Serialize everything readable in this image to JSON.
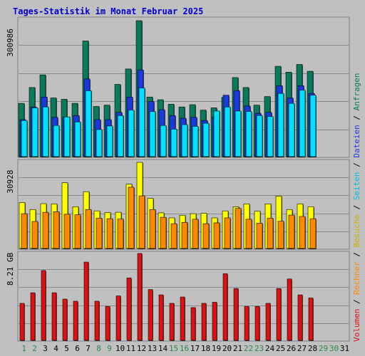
{
  "title": "Tages-Statistik im Monat Februar 2025",
  "colors": {
    "background": "#c0c0c0",
    "title": "#0000cc",
    "anfragen": "#0a7a5a",
    "dateien": "#1a3ae0",
    "seiten": "#00e0ff",
    "besuche": "#ffff00",
    "rechner": "#ff8800",
    "volumen": "#e01010",
    "weekday": "#000000",
    "weekend": "#2a8a4a"
  },
  "chart_data": [
    {
      "type": "bar",
      "panel": "top",
      "scale_label": "300986",
      "ylim": [
        0,
        300986
      ],
      "categories": [
        "1",
        "2",
        "3",
        "4",
        "5",
        "6",
        "7",
        "8",
        "9",
        "10",
        "11",
        "12",
        "13",
        "14",
        "15",
        "16",
        "17",
        "18",
        "19",
        "20",
        "21",
        "22",
        "23",
        "24",
        "25",
        "26",
        "27",
        "28",
        "29",
        "30",
        "31"
      ],
      "weekend_days": [
        "1",
        "2",
        "8",
        "9",
        "15",
        "16",
        "22",
        "23",
        "29",
        "30"
      ],
      "series": [
        {
          "name": "Anfragen",
          "values": [
            118000,
            153000,
            181000,
            130000,
            127000,
            118000,
            256000,
            111000,
            114000,
            160000,
            194000,
            300986,
            132000,
            126000,
            116000,
            110000,
            115000,
            103000,
            108000,
            131000,
            175000,
            153000,
            114000,
            133000,
            200000,
            187000,
            204000,
            189000,
            0,
            0,
            0
          ]
        },
        {
          "name": "Dateien",
          "values": [
            82000,
            110000,
            132000,
            87000,
            87000,
            91000,
            172000,
            82000,
            82000,
            98000,
            132000,
            192000,
            122000,
            104000,
            91000,
            85000,
            87000,
            80000,
            88000,
            136000,
            146000,
            112000,
            96000,
            98000,
            157000,
            130000,
            157000,
            140000,
            0,
            0,
            0
          ]
        },
        {
          "name": "Seiten",
          "values": [
            80000,
            108000,
            110000,
            69000,
            88000,
            77000,
            146000,
            60000,
            68000,
            91000,
            103000,
            152000,
            100000,
            69000,
            61000,
            71000,
            67000,
            74000,
            101000,
            110000,
            101000,
            100000,
            91000,
            89000,
            140000,
            118000,
            147000,
            136000,
            0,
            0,
            0
          ]
        }
      ]
    },
    {
      "type": "bar",
      "panel": "middle",
      "scale_label": "30928",
      "ylim": [
        0,
        30928
      ],
      "categories": [
        "1",
        "2",
        "3",
        "4",
        "5",
        "6",
        "7",
        "8",
        "9",
        "10",
        "11",
        "12",
        "13",
        "14",
        "15",
        "16",
        "17",
        "18",
        "19",
        "20",
        "21",
        "22",
        "23",
        "24",
        "25",
        "26",
        "27",
        "28",
        "29",
        "30",
        "31"
      ],
      "series": [
        {
          "name": "Besuche",
          "values": [
            16500,
            14000,
            16100,
            16000,
            23600,
            15000,
            20400,
            13500,
            12900,
            13000,
            23100,
            30928,
            18000,
            12800,
            11000,
            11900,
            12500,
            12600,
            11000,
            13500,
            15000,
            16000,
            13400,
            16000,
            18800,
            14000,
            16000,
            15000,
            0,
            0,
            0
          ]
        },
        {
          "name": "Rechner",
          "values": [
            12500,
            9700,
            13000,
            13200,
            12300,
            12100,
            14000,
            10900,
            10700,
            10600,
            22000,
            18900,
            14000,
            11200,
            8900,
            9400,
            10500,
            8900,
            9200,
            11000,
            14400,
            10500,
            9100,
            10900,
            9800,
            12000,
            11500,
            10700,
            0,
            0,
            0
          ]
        }
      ]
    },
    {
      "type": "bar",
      "panel": "bottom",
      "scale_label": "8.21 GB",
      "ylim": [
        0,
        8.21
      ],
      "categories": [
        "1",
        "2",
        "3",
        "4",
        "5",
        "6",
        "7",
        "8",
        "9",
        "10",
        "11",
        "12",
        "13",
        "14",
        "15",
        "16",
        "17",
        "18",
        "19",
        "20",
        "21",
        "22",
        "23",
        "24",
        "25",
        "26",
        "27",
        "28",
        "29",
        "30",
        "31"
      ],
      "series": [
        {
          "name": "Volumen",
          "values": [
            3.5,
            4.5,
            6.6,
            4.5,
            3.9,
            3.7,
            7.4,
            3.7,
            3.2,
            4.2,
            5.9,
            8.21,
            4.8,
            4.3,
            3.5,
            4.1,
            3.1,
            3.5,
            3.6,
            6.3,
            4.9,
            3.2,
            3.2,
            3.5,
            4.9,
            5.8,
            4.3,
            4.0,
            0,
            0,
            0
          ]
        }
      ]
    }
  ],
  "legend": {
    "volumen": "Volumen",
    "rechner": "Rechner",
    "besuche": "Besuche",
    "seiten": "Seiten",
    "dateien": "Dateien",
    "anfragen": "Anfragen",
    "separator": " / "
  }
}
